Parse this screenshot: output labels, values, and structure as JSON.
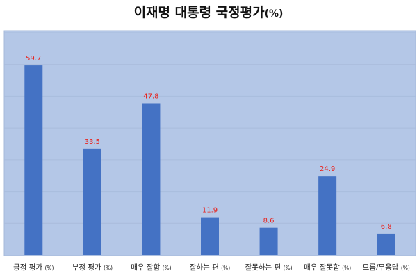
{
  "chart_data": {
    "type": "bar",
    "title": "이재명 대통령 국정평가",
    "title_suffix": "(%)",
    "categories": [
      {
        "label": "긍정 평가",
        "unit": "(%)"
      },
      {
        "label": "부정 평가",
        "unit": "(%)"
      },
      {
        "label": "매우 잘함",
        "unit": "(%)"
      },
      {
        "label": "잘하는 편",
        "unit": "(%)"
      },
      {
        "label": "잘못하는 편",
        "unit": "(%)"
      },
      {
        "label": "매우 잘못함",
        "unit": "(%)"
      },
      {
        "label": "모름/무응답",
        "unit": "(%)"
      }
    ],
    "values": [
      59.7,
      33.5,
      47.8,
      11.9,
      8.6,
      24.9,
      6.8
    ],
    "value_labels": [
      "59.7",
      "33.5",
      "47.8",
      "11.9",
      "8.6",
      "24.9",
      "6.8"
    ],
    "ylim": [
      0,
      70
    ],
    "grid": true,
    "legend": "none",
    "colors": {
      "plot_background": "#b4c7e7",
      "plot_border": "#a6b9da",
      "bar": "#4472c4",
      "gridline": "#a9bcdc",
      "value_label": "#e8211b",
      "text": "#222222"
    }
  }
}
